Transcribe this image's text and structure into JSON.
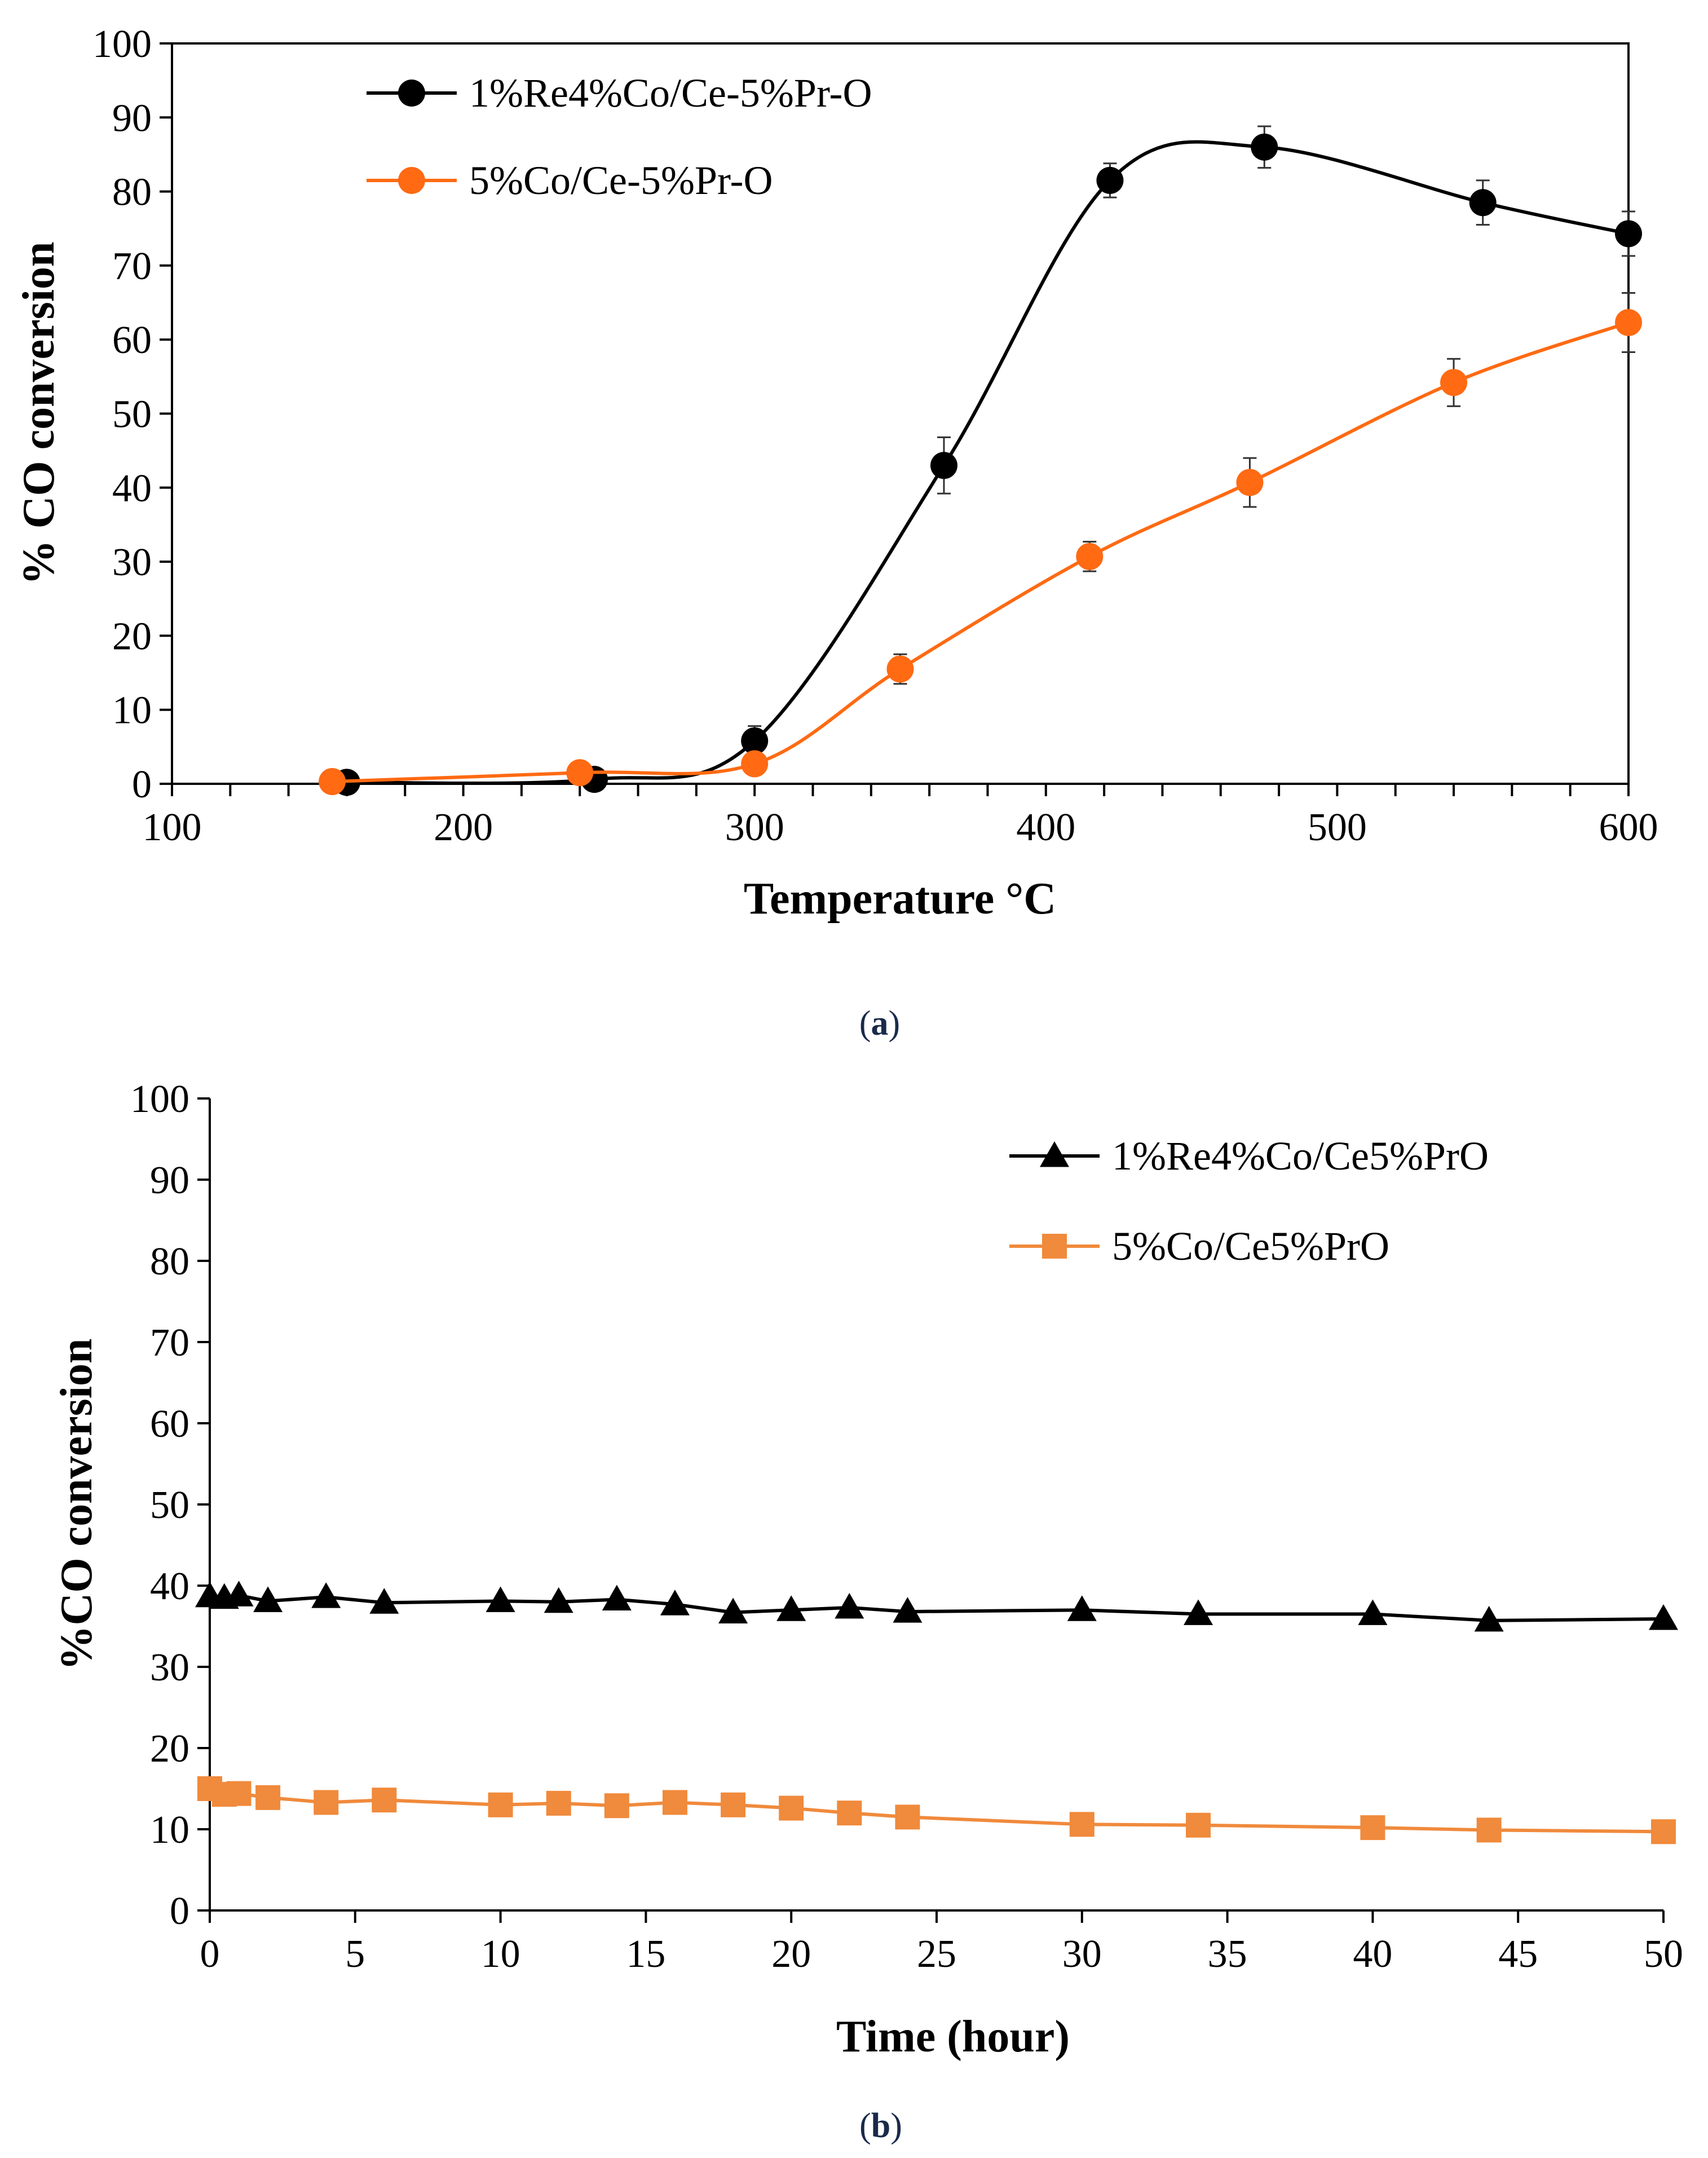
{
  "chart_data": [
    {
      "type": "line",
      "caption": "(a)",
      "caption_letter": "a",
      "title": "",
      "xlabel": "Temperature °C",
      "ylabel": "% CO conversion",
      "xlim": [
        100,
        600
      ],
      "ylim": [
        0,
        100
      ],
      "xticks": [
        100,
        200,
        300,
        400,
        500,
        600
      ],
      "yticks": [
        0,
        10,
        20,
        30,
        40,
        50,
        60,
        70,
        80,
        90,
        100
      ],
      "legend_position": "top-left",
      "series": [
        {
          "name": "1%Re4%Co/Ce-5%Pr-O",
          "color": "#000000",
          "marker": "circle",
          "x": [
            160,
            245,
            300,
            365,
            422,
            475,
            550,
            600
          ],
          "y": [
            0.2,
            0.6,
            5.8,
            43.0,
            81.5,
            86.0,
            78.5,
            74.3
          ],
          "error": [
            0.5,
            0.5,
            2.0,
            3.8,
            2.3,
            2.8,
            3.0,
            3.0
          ]
        },
        {
          "name": "5%Co/Ce-5%Pr-O",
          "color": "#ff6a13",
          "marker": "circle",
          "x": [
            155,
            240,
            300,
            350,
            415,
            470,
            540,
            600
          ],
          "y": [
            0.3,
            1.5,
            2.7,
            15.5,
            30.7,
            40.7,
            54.2,
            62.3
          ],
          "error": [
            0.5,
            1.0,
            1.0,
            2.0,
            2.0,
            3.3,
            3.2,
            4.0
          ]
        }
      ]
    },
    {
      "type": "line",
      "caption": "(b)",
      "caption_letter": "b",
      "title": "",
      "xlabel": "Time (hour)",
      "ylabel": "%CO conversion",
      "xlim": [
        0,
        50
      ],
      "ylim": [
        0,
        100
      ],
      "xticks": [
        0,
        5,
        10,
        15,
        20,
        25,
        30,
        35,
        40,
        45,
        50
      ],
      "yticks": [
        0,
        10,
        20,
        30,
        40,
        50,
        60,
        70,
        80,
        90,
        100
      ],
      "legend_position": "top-right",
      "series": [
        {
          "name": "1%Re4%Co/Ce5%PrO",
          "color": "#000000",
          "marker": "triangle",
          "x": [
            0,
            0.5,
            1,
            2,
            4,
            6,
            10,
            12,
            14,
            16,
            18,
            20,
            22,
            24,
            30,
            34,
            40,
            44,
            50
          ],
          "y": [
            38.7,
            38.5,
            38.8,
            38.1,
            38.6,
            37.9,
            38.1,
            38.0,
            38.3,
            37.7,
            36.7,
            37.0,
            37.3,
            36.8,
            37.0,
            36.5,
            36.5,
            35.7,
            35.9
          ]
        },
        {
          "name": "5%Co/Ce5%PrO",
          "color": "#f08a3c",
          "marker": "square",
          "x": [
            0,
            0.5,
            1,
            2,
            4,
            6,
            10,
            12,
            14,
            16,
            18,
            20,
            22,
            24,
            30,
            34,
            40,
            44,
            50
          ],
          "y": [
            15.0,
            14.3,
            14.4,
            13.9,
            13.3,
            13.6,
            13.0,
            13.2,
            12.9,
            13.3,
            13.0,
            12.6,
            12.0,
            11.5,
            10.6,
            10.5,
            10.2,
            9.9,
            9.7
          ]
        }
      ]
    }
  ]
}
